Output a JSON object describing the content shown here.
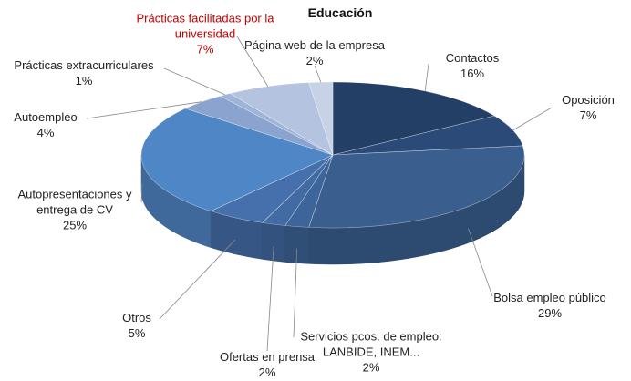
{
  "chart_data": {
    "type": "pie",
    "title": "Educación",
    "categories": [
      "Contactos",
      "Oposición",
      "Bolsa empleo público",
      "Servicios pcos. de empleo: LANBIDE, INEM...",
      "Ofertas en prensa",
      "Otros",
      "Autopresentaciones y entrega de CV",
      "Autoempleo",
      "Prácticas extracurriculares",
      "Prácticas facilitadas por la universidad",
      "Página web de la empresa"
    ],
    "values": [
      16,
      7,
      29,
      2,
      2,
      5,
      25,
      4,
      1,
      7,
      2
    ],
    "value_labels": [
      "16%",
      "7%",
      "29%",
      "2%",
      "2%",
      "5%",
      "25%",
      "4%",
      "1%",
      "7%",
      "2%"
    ],
    "colors": [
      "#243f66",
      "#2b4a78",
      "#3a5f8f",
      "#3d6599",
      "#416ba2",
      "#4570ab",
      "#4f86c6",
      "#8aa4cf",
      "#9fb4d8",
      "#b4c3df",
      "#c8d2e6"
    ],
    "label_colors": [
      "#222222",
      "#222222",
      "#222222",
      "#222222",
      "#222222",
      "#222222",
      "#222222",
      "#222222",
      "#222222",
      "#c00000",
      "#222222"
    ]
  }
}
